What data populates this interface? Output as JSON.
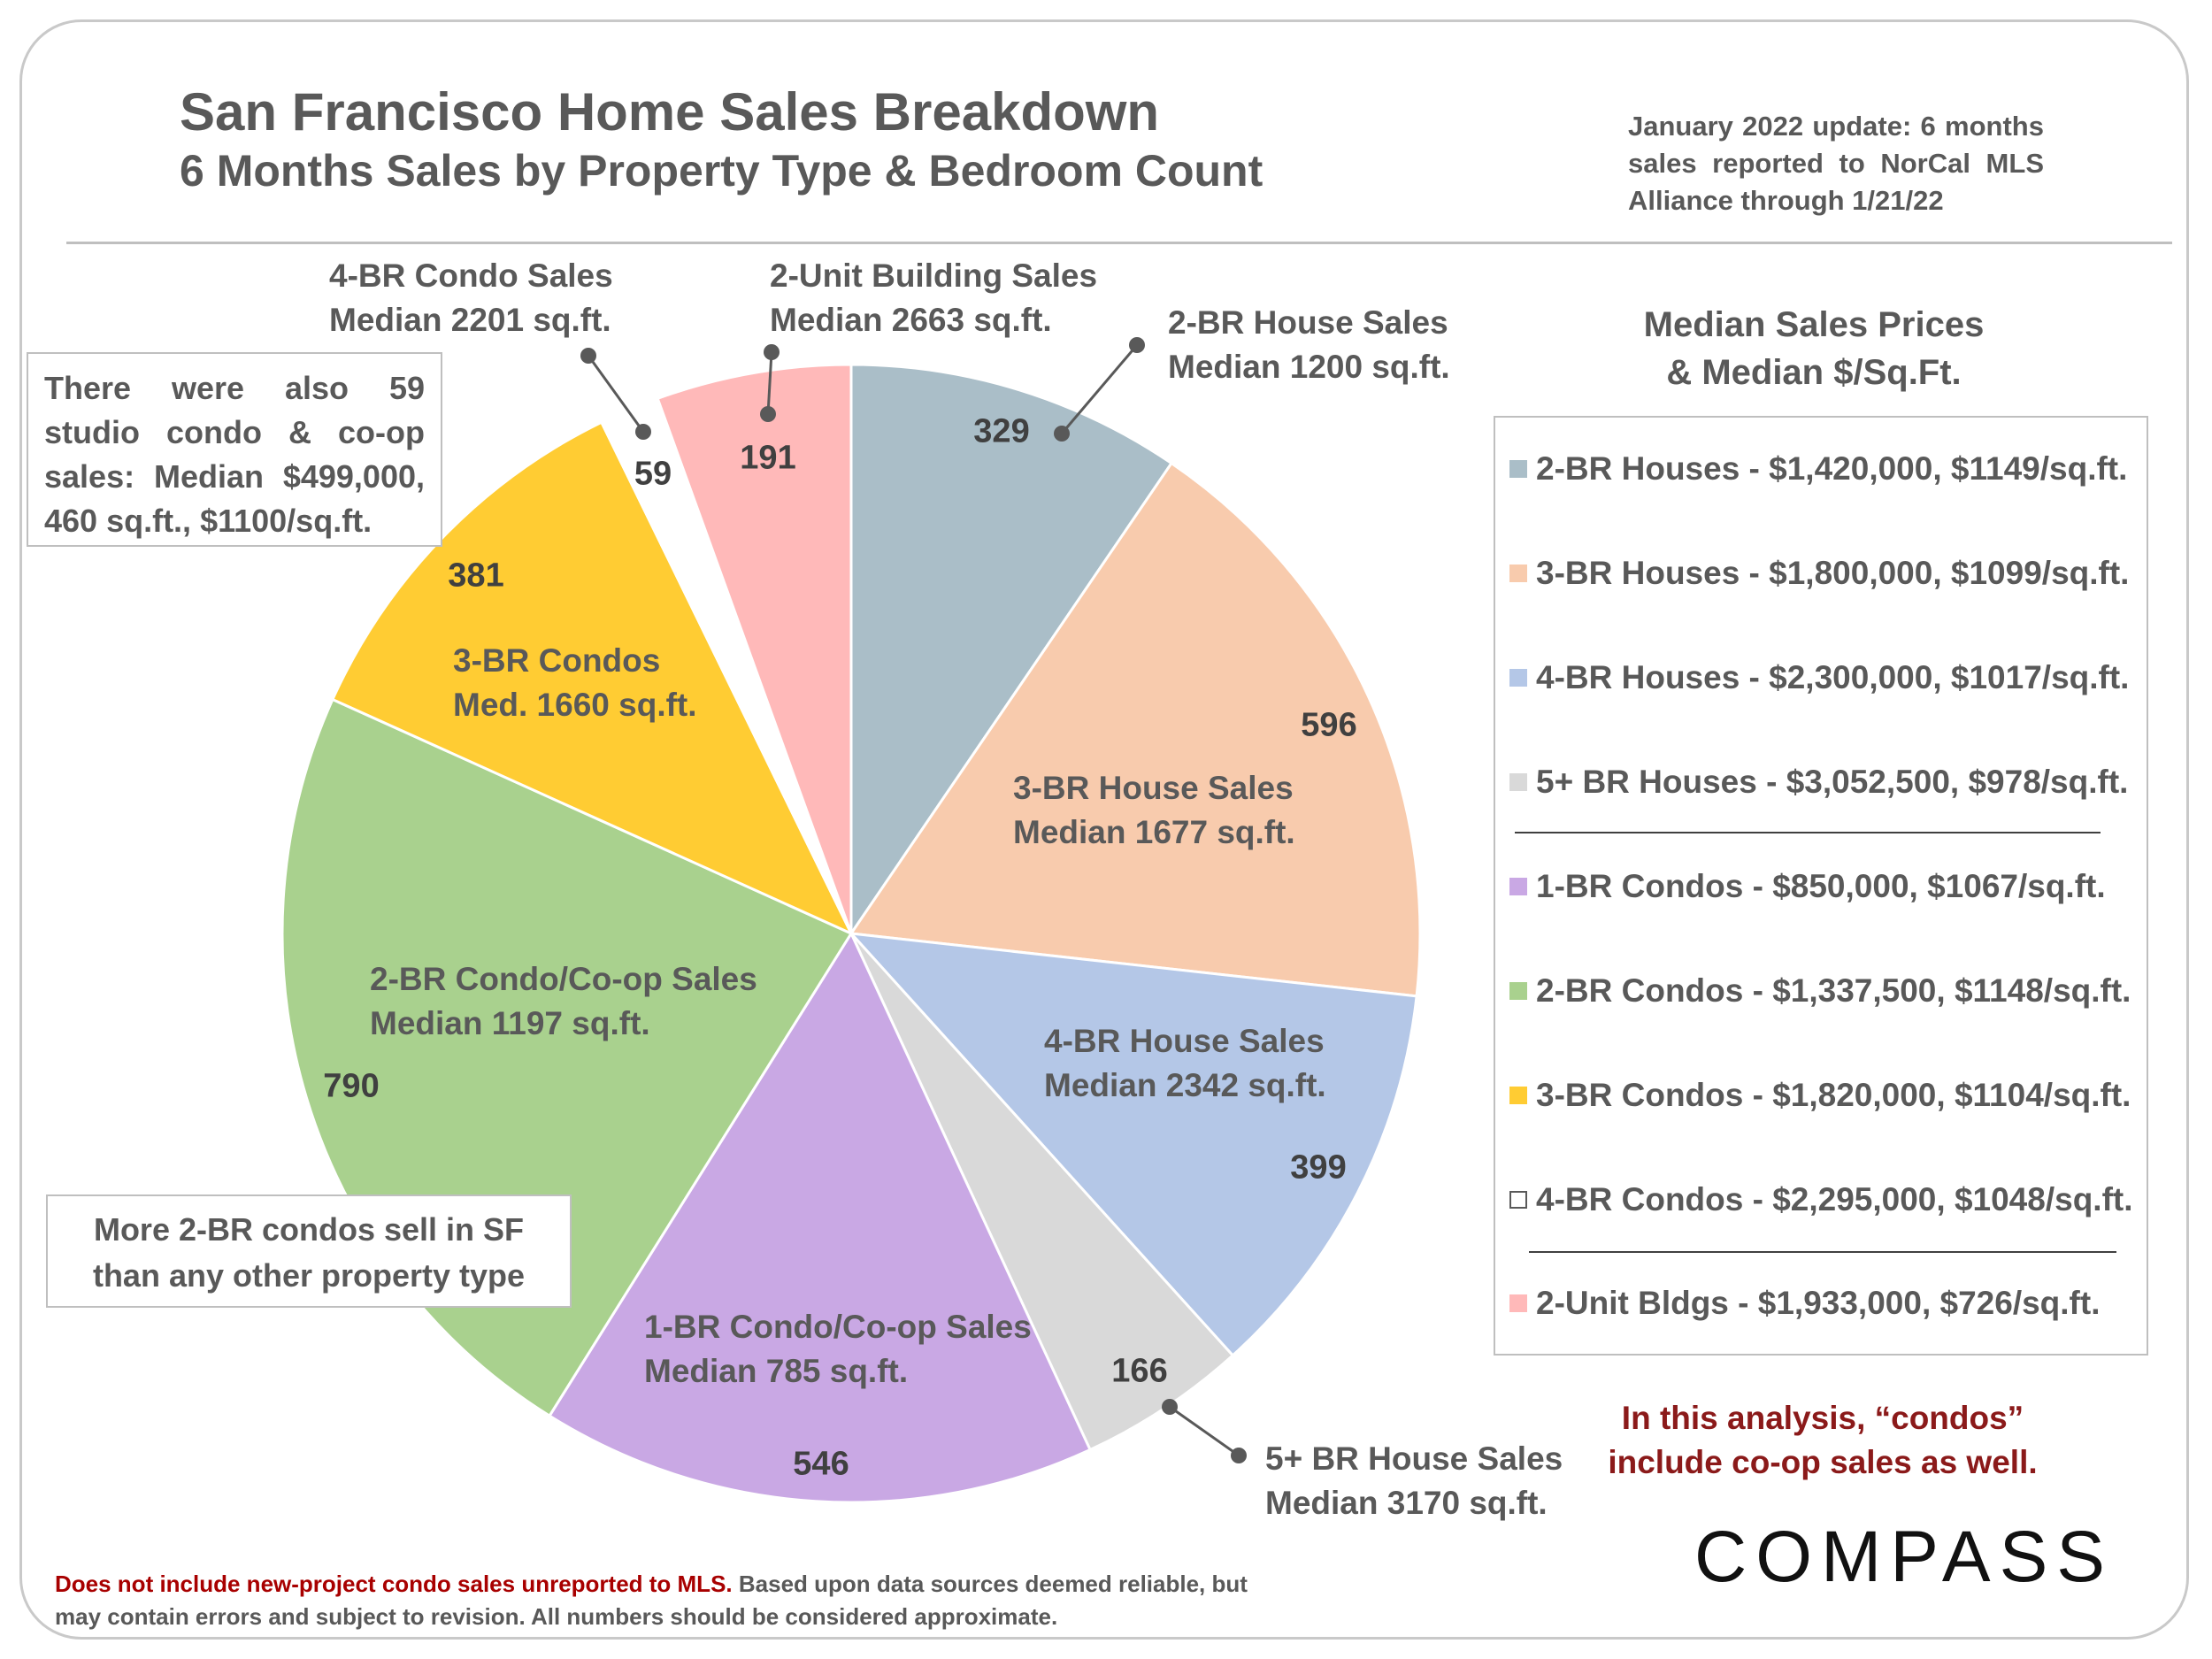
{
  "header": {
    "title": "San Francisco Home Sales Breakdown",
    "subtitle": "6 Months Sales by Property Type & Bedroom Count",
    "update_note": "January 2022 update: 6 months sales reported to NorCal MLS Alliance through 1/21/22"
  },
  "chart_data": {
    "type": "pie",
    "title": "San Francisco Home Sales Breakdown",
    "subtitle": "6 Months Sales by Property Type & Bedroom Count",
    "slices": [
      {
        "label_line1": "2-BR House Sales",
        "label_line2": "Median 1200 sq.ft.",
        "value": 329,
        "color": "#aabec8"
      },
      {
        "label_line1": "3-BR House Sales",
        "label_line2": "Median 1677 sq.ft.",
        "value": 596,
        "color": "#f8cbad"
      },
      {
        "label_line1": "4-BR House Sales",
        "label_line2": "Median 2342 sq.ft.",
        "value": 399,
        "color": "#b4c7e7"
      },
      {
        "label_line1": "5+ BR House Sales",
        "label_line2": "Median 3170 sq.ft.",
        "value": 166,
        "color": "#d9d9d9"
      },
      {
        "label_line1": "1-BR Condo/Co-op Sales",
        "label_line2": "Median 785 sq.ft.",
        "value": 546,
        "color": "#c9a8e4"
      },
      {
        "label_line1": "2-BR Condo/Co-op Sales",
        "label_line2": "Median 1197 sq.ft.",
        "value": 790,
        "color": "#a9d18e"
      },
      {
        "label_line1": "3-BR Condos",
        "label_line2": "Med. 1660 sq.ft.",
        "value": 381,
        "color": "#ffcc33"
      },
      {
        "label_line1": "4-BR Condo Sales",
        "label_line2": "Median 2201 sq.ft.",
        "value": 59,
        "color": "#ffffff"
      },
      {
        "label_line1": "2-Unit Building Sales",
        "label_line2": "Median 2663 sq.ft.",
        "value": 191,
        "color": "#ffb9b9"
      }
    ]
  },
  "annotations": {
    "studio": "There were also 59 studio condo & co-op sales: Median $499,000, 460 sq.ft., $1100/sq.ft.",
    "condos_line1": "More 2-BR condos sell in SF",
    "condos_line2": "than any other property type"
  },
  "legend": {
    "title_line1": "Median Sales Prices",
    "title_line2": "& Median $/Sq.Ft.",
    "items": [
      {
        "label": "2-BR Houses - $1,420,000, $1149/sq.ft.",
        "color": "#aabec8"
      },
      {
        "label": "3-BR Houses - $1,800,000, $1099/sq.ft.",
        "color": "#f8cbad"
      },
      {
        "label": "4-BR Houses - $2,300,000, $1017/sq.ft.",
        "color": "#b4c7e7"
      },
      {
        "label": "5+ BR Houses - $3,052,500, $978/sq.ft.",
        "color": "#d9d9d9"
      },
      {
        "label": "1-BR Condos - $850,000, $1067/sq.ft.",
        "color": "#c9a8e4"
      },
      {
        "label": "2-BR Condos - $1,337,500, $1148/sq.ft.",
        "color": "#a9d18e"
      },
      {
        "label": "3-BR Condos - $1,820,000, $1104/sq.ft.",
        "color": "#ffcc33"
      },
      {
        "label": "4-BR Condos - $2,295,000, $1048/sq.ft.",
        "color": "#ffffff"
      },
      {
        "label": "2-Unit Bldgs - $1,933,000, $726/sq.ft.",
        "color": "#ffb9b9"
      }
    ]
  },
  "condo_note_line1": "In this analysis, “condos”",
  "condo_note_line2": "include co-op sales as well.",
  "logo": "COMPASS",
  "footer": {
    "red": "Does not include new-project condo sales unreported to MLS.",
    "rest": "Based upon data sources deemed reliable, but may contain errors and subject to revision. All numbers should be considered approximate."
  }
}
